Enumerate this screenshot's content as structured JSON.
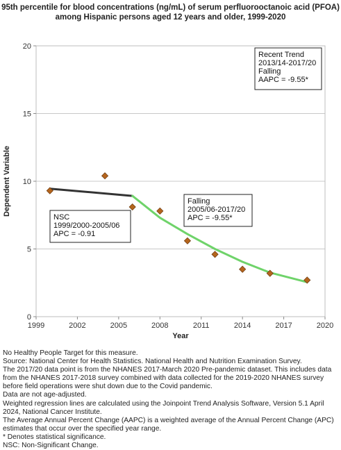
{
  "chart_data": {
    "type": "scatter",
    "title": "95th percentile for blood concentrations (ng/mL) of serum perfluorooctanoic acid (PFOA) among Hispanic persons aged 12 years and older, 1999-2020",
    "xlabel": "Year",
    "ylabel": "Dependent Variable",
    "xlim": [
      1999,
      2020
    ],
    "ylim": [
      0,
      20
    ],
    "x_ticks": [
      1999,
      2002,
      2005,
      2008,
      2011,
      2014,
      2017,
      2020
    ],
    "y_ticks": [
      0,
      5,
      10,
      15,
      20
    ],
    "grid": "horizontal",
    "series": [
      {
        "points": [
          {
            "x": 2000,
            "y": 9.3
          },
          {
            "x": 2004,
            "y": 10.4
          },
          {
            "x": 2006,
            "y": 8.1
          },
          {
            "x": 2008,
            "y": 7.8
          },
          {
            "x": 2010,
            "y": 5.6
          },
          {
            "x": 2012,
            "y": 4.6
          },
          {
            "x": 2014,
            "y": 3.5
          },
          {
            "x": 2016,
            "y": 3.2
          },
          {
            "x": 2018.7,
            "y": 2.7
          }
        ],
        "color": "#b5651d"
      }
    ],
    "trend_lines": [
      {
        "points": [
          {
            "x": 2000,
            "y": 9.45
          },
          {
            "x": 2006,
            "y": 8.92
          }
        ],
        "color": "#333333"
      },
      {
        "points": [
          {
            "x": 2006,
            "y": 8.92
          },
          {
            "x": 2008,
            "y": 7.3
          },
          {
            "x": 2010,
            "y": 6.1
          },
          {
            "x": 2012,
            "y": 5.0
          },
          {
            "x": 2014,
            "y": 4.05
          },
          {
            "x": 2016,
            "y": 3.25
          },
          {
            "x": 2018.7,
            "y": 2.55
          }
        ],
        "color": "#6fd36a"
      }
    ],
    "annotations": [
      {
        "lines": [
          "NSC",
          "1999/2000-2005/06",
          "APC = -0.91"
        ]
      },
      {
        "lines": [
          "Falling",
          "2005/06-2017/20",
          "APC = -9.55*"
        ]
      },
      {
        "lines": [
          "Recent Trend",
          "2013/14-2017/20",
          "Falling",
          "AAPC = -9.55*"
        ]
      }
    ]
  },
  "notes": [
    "No Healthy People Target for this measure.",
    "Source: National Center for Health Statistics. National Health and Nutrition Examination Survey.",
    "The 2017/20 data point is from the NHANES 2017-March 2020 Pre-pandemic dataset. This includes data from the NHANES 2017-2018 survey combined with data collected for the 2019-2020 NHANES survey before field operations were shut down due to the Covid pandemic.",
    "Data are not age-adjusted.",
    "Weighted regression lines are calculated using the Joinpoint Trend Analysis Software, Version 5.1 April 2024, National Cancer Institute.",
    "The Average Annual Percent Change (AAPC) is a weighted average of the Annual Percent Change (APC) estimates that occur over the specified year range.",
    "* Denotes statistical significance.",
    "NSC: Non-Significant Change."
  ]
}
